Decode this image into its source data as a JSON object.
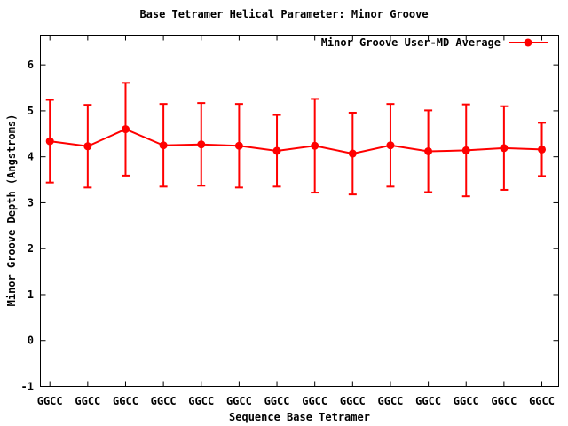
{
  "chart_data": {
    "type": "line",
    "title": "Base Tetramer Helical Parameter: Minor Groove",
    "xlabel": "Sequence Base Tetramer",
    "ylabel": "Minor Groove Depth (Angstroms)",
    "legend": {
      "label": "Minor Groove User-MD Average",
      "position": "top-right-inside"
    },
    "categories": [
      "GGCC",
      "GGCC",
      "GGCC",
      "GGCC",
      "GGCC",
      "GGCC",
      "GGCC",
      "GGCC",
      "GGCC",
      "GGCC",
      "GGCC",
      "GGCC",
      "GGCC",
      "GGCC"
    ],
    "series": [
      {
        "name": "Minor Groove User-MD Average",
        "values": [
          4.34,
          4.23,
          4.6,
          4.25,
          4.27,
          4.24,
          4.13,
          4.24,
          4.07,
          4.25,
          4.12,
          4.14,
          4.19,
          4.16
        ],
        "yerr": [
          0.9,
          0.9,
          1.01,
          0.9,
          0.9,
          0.91,
          0.78,
          1.02,
          0.89,
          0.9,
          0.89,
          1.0,
          0.91,
          0.58
        ],
        "color": "#ff0000",
        "marker": "filled-circle"
      }
    ],
    "ylim": [
      -1,
      6.65
    ],
    "yticks": [
      -1,
      0,
      1,
      2,
      3,
      4,
      5,
      6
    ],
    "grid": false,
    "colors": {
      "background": "#ffffff",
      "axis": "#000000",
      "text": "#000000"
    }
  }
}
